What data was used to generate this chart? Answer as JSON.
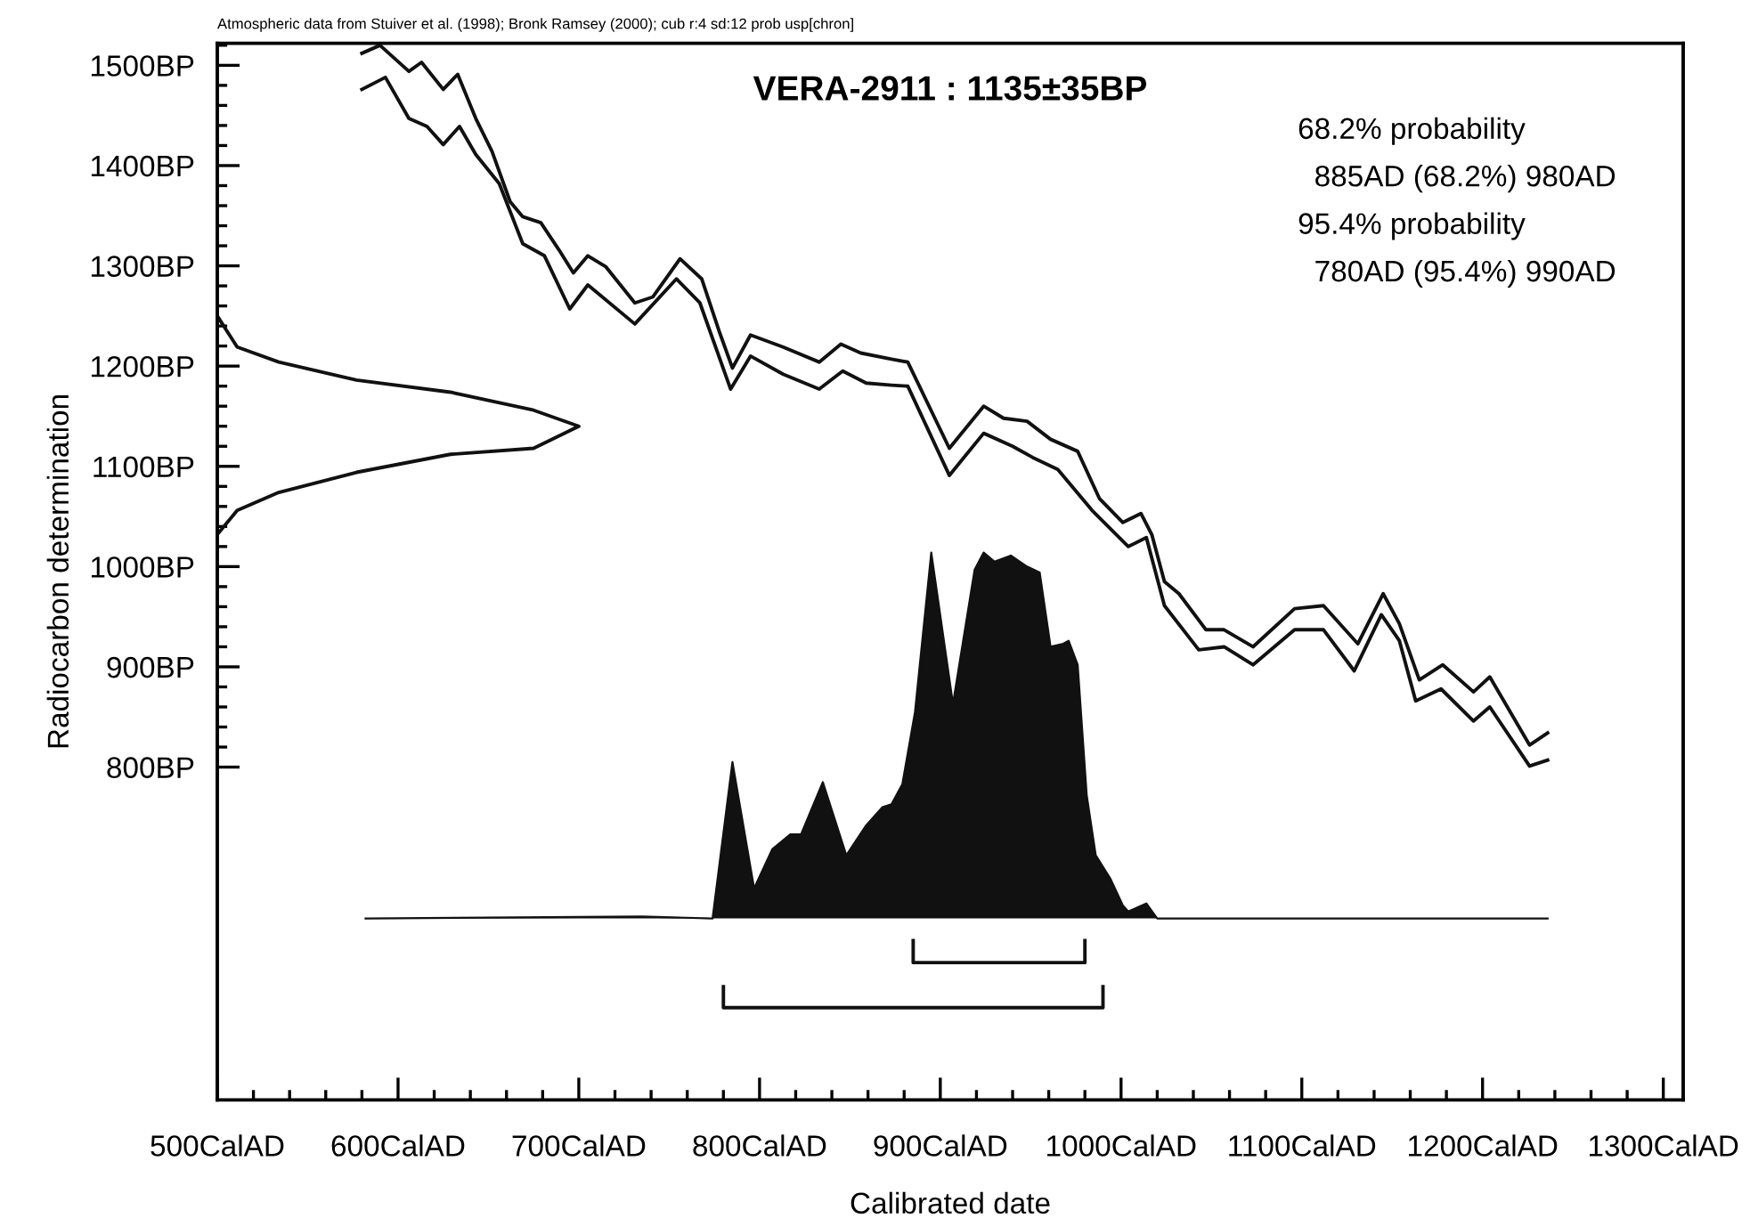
{
  "chart_data": {
    "type": "line",
    "title": "VERA-2911 : 1135±35BP",
    "xlabel": "Calibrated date",
    "ylabel": "Radiocarbon determination",
    "annotations": [
      "Atmospheric data from Stuiver et al. (1998); Bronk Ramsey (2000); cub r:4 sd:12 prob usp[chron]",
      "68.2% probability",
      "  885AD (68.2%) 980AD",
      "95.4% probability",
      "  780AD (95.4%) 990AD"
    ],
    "xlim": [
      500,
      1311
    ],
    "ylim": [
      468,
      1522
    ],
    "xticks": [
      {
        "value": 500,
        "label": "500CalAD"
      },
      {
        "value": 520,
        "label": null
      },
      {
        "value": 540,
        "label": null
      },
      {
        "value": 560,
        "label": null
      },
      {
        "value": 580,
        "label": null
      },
      {
        "value": 600,
        "label": "600CalAD"
      },
      {
        "value": 620,
        "label": null
      },
      {
        "value": 640,
        "label": null
      },
      {
        "value": 660,
        "label": null
      },
      {
        "value": 680,
        "label": null
      },
      {
        "value": 700,
        "label": "700CalAD"
      },
      {
        "value": 720,
        "label": null
      },
      {
        "value": 740,
        "label": null
      },
      {
        "value": 760,
        "label": null
      },
      {
        "value": 780,
        "label": null
      },
      {
        "value": 800,
        "label": "800CalAD"
      },
      {
        "value": 820,
        "label": null
      },
      {
        "value": 840,
        "label": null
      },
      {
        "value": 860,
        "label": null
      },
      {
        "value": 880,
        "label": null
      },
      {
        "value": 900,
        "label": "900CalAD"
      },
      {
        "value": 920,
        "label": null
      },
      {
        "value": 940,
        "label": null
      },
      {
        "value": 960,
        "label": null
      },
      {
        "value": 980,
        "label": null
      },
      {
        "value": 1000,
        "label": "1000CalAD"
      },
      {
        "value": 1020,
        "label": null
      },
      {
        "value": 1040,
        "label": null
      },
      {
        "value": 1060,
        "label": null
      },
      {
        "value": 1080,
        "label": null
      },
      {
        "value": 1100,
        "label": "1100CalAD"
      },
      {
        "value": 1120,
        "label": null
      },
      {
        "value": 1140,
        "label": null
      },
      {
        "value": 1160,
        "label": null
      },
      {
        "value": 1180,
        "label": null
      },
      {
        "value": 1200,
        "label": "1200CalAD"
      },
      {
        "value": 1220,
        "label": null
      },
      {
        "value": 1240,
        "label": null
      },
      {
        "value": 1260,
        "label": null
      },
      {
        "value": 1280,
        "label": null
      },
      {
        "value": 1300,
        "label": "1300CalAD"
      }
    ],
    "yticks": [
      {
        "value": 800,
        "label": "800BP"
      },
      {
        "value": 820,
        "label": null
      },
      {
        "value": 840,
        "label": null
      },
      {
        "value": 860,
        "label": null
      },
      {
        "value": 880,
        "label": null
      },
      {
        "value": 900,
        "label": "900BP"
      },
      {
        "value": 920,
        "label": null
      },
      {
        "value": 940,
        "label": null
      },
      {
        "value": 960,
        "label": null
      },
      {
        "value": 980,
        "label": null
      },
      {
        "value": 1000,
        "label": "1000BP"
      },
      {
        "value": 1020,
        "label": null
      },
      {
        "value": 1040,
        "label": null
      },
      {
        "value": 1060,
        "label": null
      },
      {
        "value": 1080,
        "label": null
      },
      {
        "value": 1100,
        "label": "1100BP"
      },
      {
        "value": 1120,
        "label": null
      },
      {
        "value": 1140,
        "label": null
      },
      {
        "value": 1160,
        "label": null
      },
      {
        "value": 1180,
        "label": null
      },
      {
        "value": 1200,
        "label": "1200BP"
      },
      {
        "value": 1220,
        "label": null
      },
      {
        "value": 1240,
        "label": null
      },
      {
        "value": 1260,
        "label": null
      },
      {
        "value": 1280,
        "label": null
      },
      {
        "value": 1300,
        "label": "1300BP"
      },
      {
        "value": 1320,
        "label": null
      },
      {
        "value": 1340,
        "label": null
      },
      {
        "value": 1360,
        "label": null
      },
      {
        "value": 1380,
        "label": null
      },
      {
        "value": 1400,
        "label": "1400BP"
      },
      {
        "value": 1420,
        "label": null
      },
      {
        "value": 1440,
        "label": null
      },
      {
        "value": 1460,
        "label": null
      },
      {
        "value": 1480,
        "label": null
      },
      {
        "value": 1500,
        "label": "1500BP"
      },
      {
        "value": 1520,
        "label": null
      }
    ],
    "grid": false,
    "series": [
      {
        "color": "#111111",
        "x": [
          580,
          590,
          606,
          613,
          625,
          633,
          643,
          652,
          662,
          669,
          679,
          689,
          697,
          705,
          715,
          731,
          741,
          756,
          768,
          778,
          785,
          795,
          813,
          833,
          845,
          856,
          873,
          882,
          905,
          924,
          935,
          948,
          961,
          976,
          988,
          1001,
          1011,
          1017,
          1024,
          1032,
          1047,
          1057,
          1073,
          1096,
          1112,
          1131,
          1145,
          1154,
          1165,
          1178,
          1195,
          1204,
          1226,
          1236
        ],
        "values": [
          1512,
          1520,
          1494,
          1503,
          1476,
          1491,
          1447,
          1414,
          1364,
          1349,
          1343,
          1316,
          1293,
          1310,
          1299,
          1263,
          1269,
          1307,
          1287,
          1233,
          1198,
          1231,
          1219,
          1204,
          1222,
          1213,
          1207,
          1204,
          1118,
          1160,
          1148,
          1145,
          1127,
          1115,
          1068,
          1044,
          1053,
          1032,
          985,
          973,
          937,
          937,
          920,
          958,
          961,
          923,
          973,
          943,
          887,
          902,
          875,
          890,
          822,
          834
        ]
      },
      {
        "color": "#111111",
        "x": [
          580,
          593,
          606,
          616,
          625,
          634,
          643,
          656,
          669,
          681,
          695,
          705,
          731,
          754,
          767,
          784,
          795,
          813,
          833,
          846,
          859,
          873,
          882,
          905,
          924,
          940,
          951,
          965,
          984,
          1004,
          1014,
          1024,
          1043,
          1057,
          1073,
          1096,
          1112,
          1129,
          1144,
          1154,
          1163,
          1177,
          1195,
          1204,
          1226,
          1236
        ],
        "values": [
          1476,
          1488,
          1447,
          1439,
          1421,
          1439,
          1411,
          1382,
          1322,
          1310,
          1257,
          1281,
          1242,
          1287,
          1263,
          1177,
          1210,
          1192,
          1177,
          1195,
          1183,
          1181,
          1180,
          1091,
          1133,
          1120,
          1109,
          1097,
          1056,
          1020,
          1029,
          961,
          917,
          920,
          902,
          937,
          937,
          896,
          952,
          926,
          866,
          878,
          846,
          860,
          801,
          807
        ]
      },
      {
        "color": "#111111",
        "x": [
          500,
          511,
          534,
          577,
          629,
          675,
          700,
          675,
          629,
          577,
          534,
          511,
          500
        ],
        "values": [
          1250,
          1219,
          1204,
          1186,
          1174,
          1156,
          1140,
          1118,
          1112,
          1094,
          1074,
          1056,
          1032
        ]
      },
      {
        "type": "area",
        "color": "#111111",
        "x": [
          582,
          735,
          774,
          785,
          797,
          807,
          817,
          823,
          835,
          848,
          859,
          868,
          873,
          879,
          886,
          895,
          907,
          919,
          924,
          930,
          939,
          948,
          955,
          961,
          968,
          971,
          976,
          981,
          986,
          994,
          1001,
          1004,
          1014,
          1020,
          1236
        ],
        "values": [
          649,
          651,
          649,
          805,
          679,
          718,
          733,
          733,
          785,
          712,
          742,
          760,
          763,
          783,
          855,
          1014,
          863,
          997,
          1014,
          1005,
          1011,
          1000,
          994,
          920,
          923,
          926,
          902,
          772,
          712,
          689,
          662,
          656,
          664,
          649,
          649
        ]
      },
      {
        "color": "#111111",
        "x": [
          885,
          885,
          980,
          980
        ],
        "values": [
          627,
          605,
          605,
          627
        ]
      },
      {
        "color": "#111111",
        "x": [
          780,
          780,
          990,
          990
        ],
        "values": [
          581,
          560,
          560,
          581
        ]
      }
    ]
  }
}
